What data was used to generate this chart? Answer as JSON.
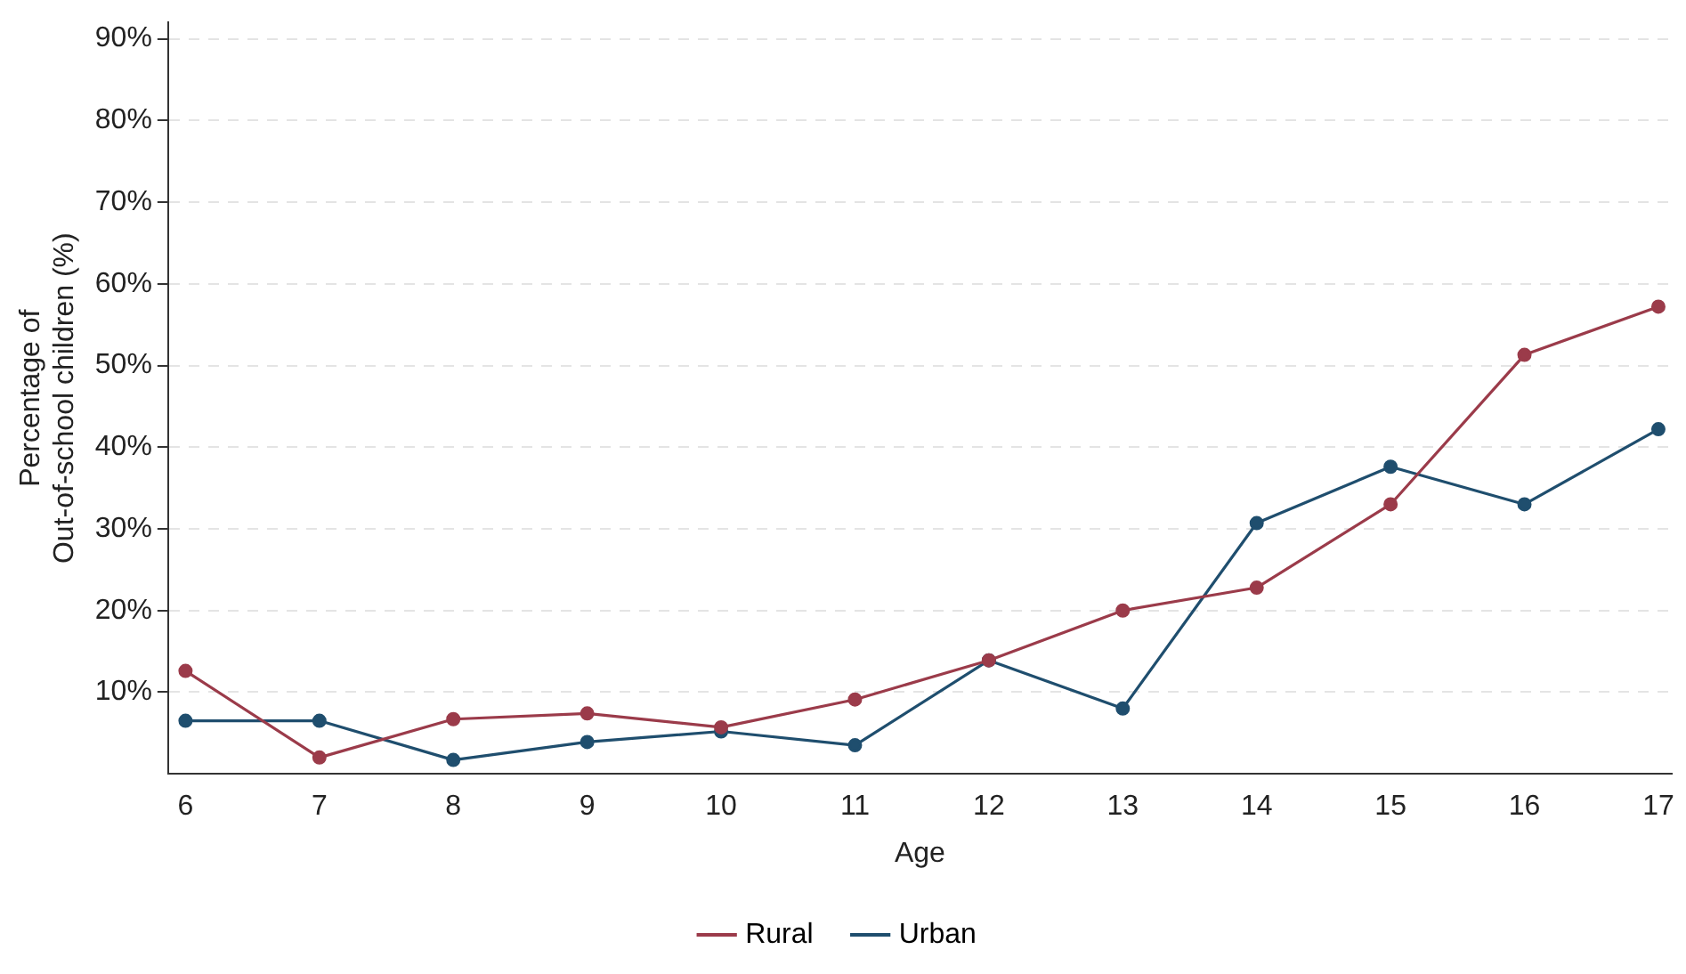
{
  "chart_data": {
    "type": "line",
    "xlabel": "Age",
    "ylabel": "Percentage of\nOut-of-school children (%)",
    "x": [
      6,
      7,
      8,
      9,
      10,
      11,
      12,
      13,
      14,
      15,
      16,
      17
    ],
    "series": [
      {
        "name": "Rural",
        "color": "#9b3b4a",
        "values": [
          12.6,
          2.0,
          6.7,
          7.4,
          5.7,
          9.1,
          13.9,
          20.0,
          22.8,
          33.0,
          51.3,
          57.2
        ]
      },
      {
        "name": "Urban",
        "color": "#1f4e6e",
        "values": [
          6.5,
          6.5,
          1.7,
          3.9,
          5.2,
          3.5,
          13.9,
          8.0,
          30.7,
          37.6,
          33.0,
          42.2
        ]
      }
    ],
    "xlim": [
      5.87,
      17.1
    ],
    "xticks": [
      6,
      7,
      8,
      9,
      10,
      11,
      12,
      13,
      14,
      15,
      16,
      17
    ],
    "ylim": [
      0,
      92
    ],
    "yticks": [
      {
        "value": 10,
        "label": "10%"
      },
      {
        "value": 20,
        "label": "20%"
      },
      {
        "value": 30,
        "label": "30%"
      },
      {
        "value": 40,
        "label": "40%"
      },
      {
        "value": 50,
        "label": "50%"
      },
      {
        "value": 60,
        "label": "60%"
      },
      {
        "value": 70,
        "label": "70%"
      },
      {
        "value": 80,
        "label": "80%"
      },
      {
        "value": 90,
        "label": "90%"
      }
    ],
    "grid": "y",
    "legend": "bottom",
    "marker": "circle",
    "line_style": "solid"
  }
}
